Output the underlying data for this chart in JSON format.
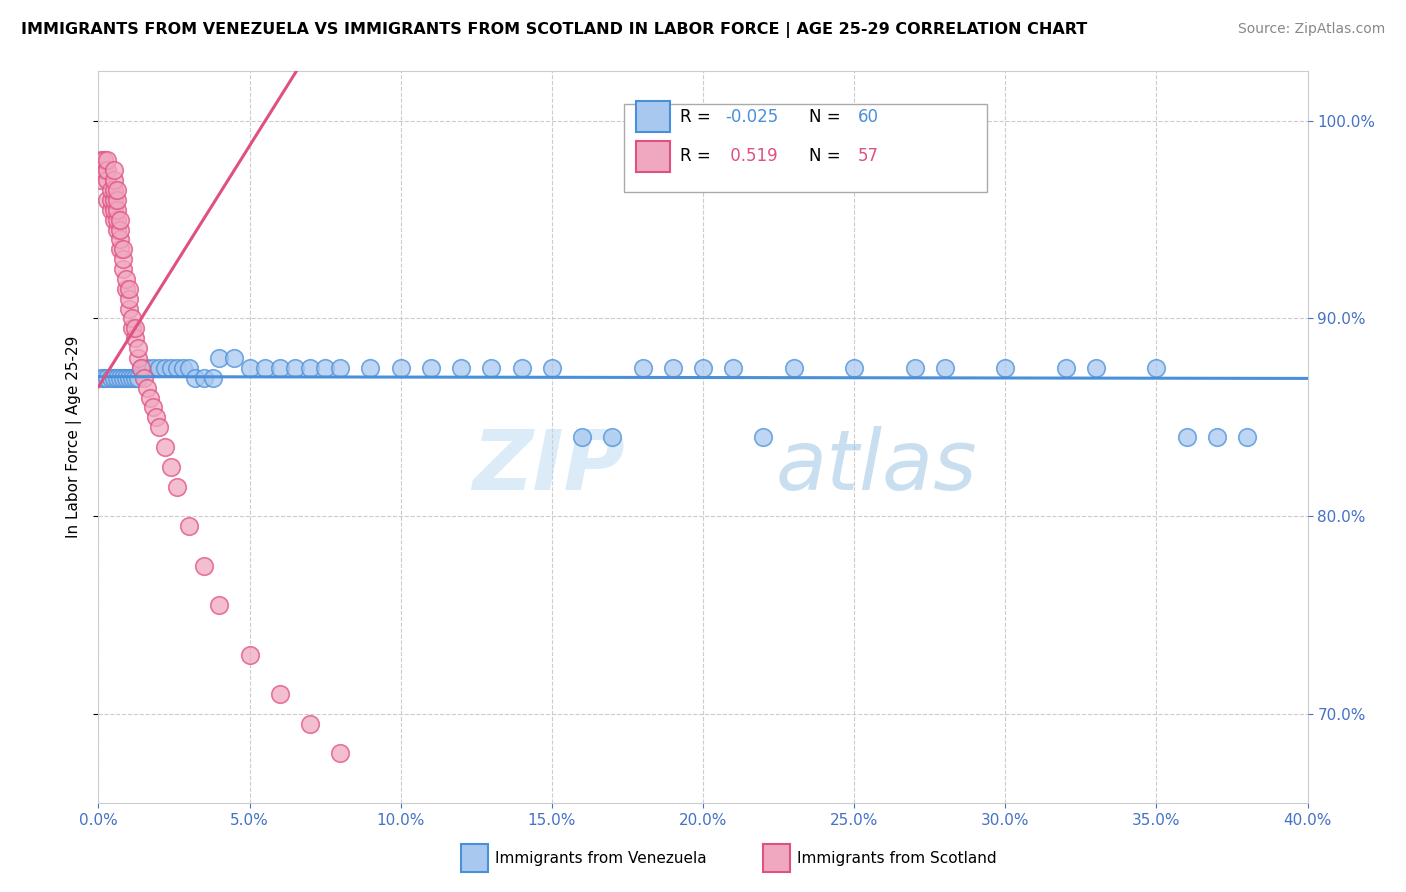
{
  "title": "IMMIGRANTS FROM VENEZUELA VS IMMIGRANTS FROM SCOTLAND IN LABOR FORCE | AGE 25-29 CORRELATION CHART",
  "source": "Source: ZipAtlas.com",
  "ylabel": "In Labor Force | Age 25-29",
  "legend_label1": "Immigrants from Venezuela",
  "legend_label2": "Immigrants from Scotland",
  "R1": -0.025,
  "N1": 60,
  "R2": 0.519,
  "N2": 57,
  "color_venezuela": "#a8c8f0",
  "color_scotland": "#f0a8c0",
  "color_venezuela_line": "#4a90d9",
  "color_scotland_line": "#e05080",
  "background_color": "#ffffff",
  "watermark_zip": "ZIP",
  "watermark_atlas": "atlas",
  "xmin": 0.0,
  "xmax": 0.4,
  "ymin": 0.655,
  "ymax": 1.025,
  "venezuela_x": [
    0.001,
    0.002,
    0.003,
    0.004,
    0.005,
    0.006,
    0.007,
    0.008,
    0.009,
    0.01,
    0.011,
    0.012,
    0.013,
    0.014,
    0.015,
    0.016,
    0.018,
    0.02,
    0.022,
    0.024,
    0.026,
    0.028,
    0.03,
    0.032,
    0.035,
    0.038,
    0.04,
    0.045,
    0.05,
    0.055,
    0.06,
    0.065,
    0.07,
    0.075,
    0.08,
    0.09,
    0.1,
    0.11,
    0.12,
    0.13,
    0.14,
    0.15,
    0.16,
    0.17,
    0.18,
    0.19,
    0.2,
    0.21,
    0.22,
    0.23,
    0.25,
    0.27,
    0.3,
    0.32,
    0.35,
    0.36,
    0.37,
    0.38,
    0.33,
    0.28
  ],
  "venezuela_y": [
    0.87,
    0.87,
    0.87,
    0.87,
    0.87,
    0.87,
    0.87,
    0.87,
    0.87,
    0.87,
    0.87,
    0.87,
    0.87,
    0.875,
    0.875,
    0.875,
    0.875,
    0.875,
    0.875,
    0.875,
    0.875,
    0.875,
    0.875,
    0.87,
    0.87,
    0.87,
    0.88,
    0.88,
    0.875,
    0.875,
    0.875,
    0.875,
    0.875,
    0.875,
    0.875,
    0.875,
    0.875,
    0.875,
    0.875,
    0.875,
    0.875,
    0.875,
    0.84,
    0.84,
    0.875,
    0.875,
    0.875,
    0.875,
    0.84,
    0.875,
    0.875,
    0.875,
    0.875,
    0.875,
    0.875,
    0.84,
    0.84,
    0.84,
    0.875,
    0.875
  ],
  "scotland_x": [
    0.001,
    0.001,
    0.002,
    0.002,
    0.003,
    0.003,
    0.003,
    0.003,
    0.004,
    0.004,
    0.004,
    0.005,
    0.005,
    0.005,
    0.005,
    0.005,
    0.005,
    0.006,
    0.006,
    0.006,
    0.006,
    0.006,
    0.007,
    0.007,
    0.007,
    0.007,
    0.008,
    0.008,
    0.008,
    0.009,
    0.009,
    0.01,
    0.01,
    0.01,
    0.011,
    0.011,
    0.012,
    0.012,
    0.013,
    0.013,
    0.014,
    0.015,
    0.016,
    0.017,
    0.018,
    0.019,
    0.02,
    0.022,
    0.024,
    0.026,
    0.03,
    0.035,
    0.04,
    0.05,
    0.06,
    0.07,
    0.08
  ],
  "scotland_y": [
    0.97,
    0.98,
    0.975,
    0.98,
    0.96,
    0.97,
    0.975,
    0.98,
    0.955,
    0.96,
    0.965,
    0.95,
    0.955,
    0.96,
    0.965,
    0.97,
    0.975,
    0.945,
    0.95,
    0.955,
    0.96,
    0.965,
    0.935,
    0.94,
    0.945,
    0.95,
    0.925,
    0.93,
    0.935,
    0.915,
    0.92,
    0.905,
    0.91,
    0.915,
    0.895,
    0.9,
    0.89,
    0.895,
    0.88,
    0.885,
    0.875,
    0.87,
    0.865,
    0.86,
    0.855,
    0.85,
    0.845,
    0.835,
    0.825,
    0.815,
    0.795,
    0.775,
    0.755,
    0.73,
    0.71,
    0.695,
    0.68
  ],
  "ytick_interval": 0.1,
  "xtick_interval": 0.05
}
